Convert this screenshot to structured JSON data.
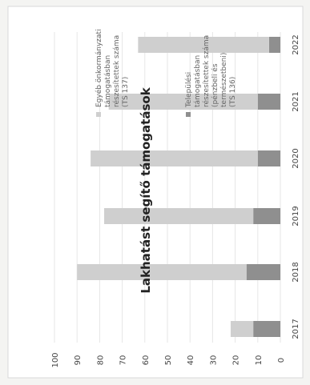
{
  "chart_data": {
    "type": "bar",
    "stacked": true,
    "orientation": "vertical",
    "rotated_page": true,
    "title": "Lakhatást segítő támogatások",
    "categories": [
      "2017",
      "2018",
      "2019",
      "2020",
      "2021",
      "2022"
    ],
    "series": [
      {
        "name": "Települési támogatásban részesítettek száma (pénzbeli és természetbeni) (TS 136)",
        "color": "#8f8f8f",
        "values": [
          12,
          15,
          12,
          10,
          10,
          5
        ]
      },
      {
        "name": "Egyéb önkormányzati támogatásban részesítettek száma (TS 137)",
        "color": "#cfcfcf",
        "values": [
          10,
          75,
          66,
          74,
          66,
          58
        ]
      }
    ],
    "ylim": [
      0,
      100
    ],
    "yticks": [
      "0",
      "10",
      "20",
      "30",
      "40",
      "50",
      "60",
      "70",
      "80",
      "90",
      "100"
    ],
    "grid": true,
    "legend_position": "right",
    "legend_lines": [
      [
        "Egyéb önkormányzati",
        "támogatásban",
        "részesítettek száma",
        "(TS 137)"
      ],
      [
        "Települési",
        "támogatásban",
        "részesítettek száma",
        "(pénzbeli és",
        "természetbeni)",
        "(TS 136)"
      ]
    ]
  }
}
